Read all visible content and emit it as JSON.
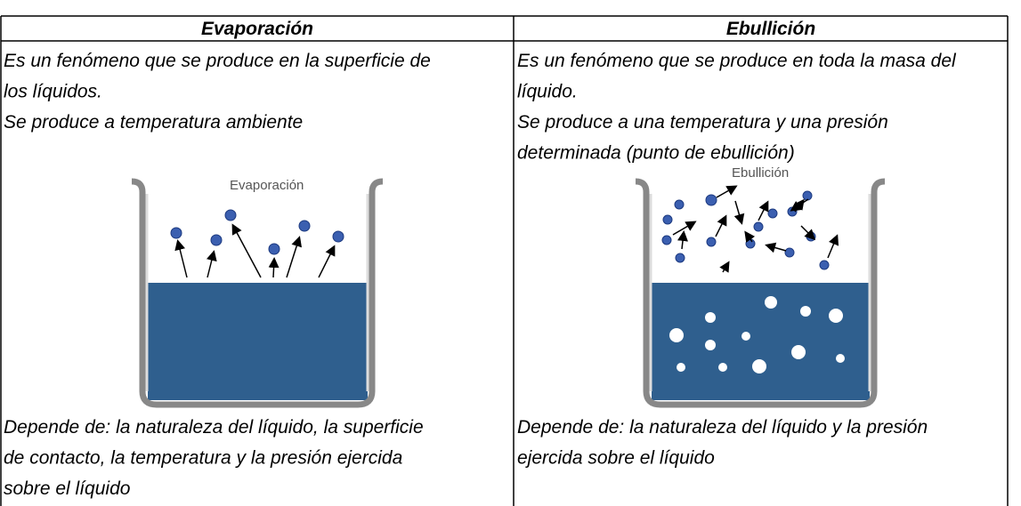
{
  "table": {
    "header": [
      "Evaporación",
      "Ebullición"
    ],
    "cells": [
      {
        "intro": [
          "Es un fenómeno que se produce en la superficie de",
          "los líquidos.",
          "Se produce a temperatura ambiente"
        ],
        "diagram_label": "Evaporación",
        "depends": [
          "Depende de: la naturaleza del líquido, la superficie",
          "de contacto, la temperatura y la presión ejercida",
          "sobre el líquido"
        ]
      },
      {
        "intro": [
          "Es un fenómeno que se produce en toda la masa del",
          "líquido.",
          "Se produce a una temperatura y una presión",
          "determinada (punto de ebullición)"
        ],
        "diagram_label": "Ebullición",
        "depends": [
          "Depende de: la naturaleza del líquido y la presión",
          "ejercida sobre el líquido"
        ]
      }
    ]
  }
}
